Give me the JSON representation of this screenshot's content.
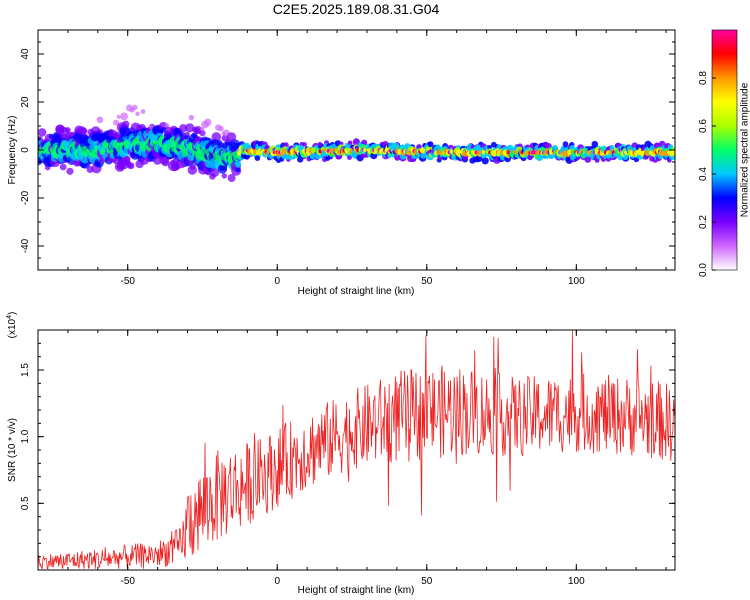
{
  "title": "C2E5.2025.189.08.31.G04",
  "chart_data": [
    {
      "type": "heatmap",
      "xlabel": "Height of straight line (km)",
      "ylabel": "Frequency (Hz)",
      "xlim": [
        -80,
        133
      ],
      "ylim": [
        -50,
        50
      ],
      "xticks": [
        -50,
        0,
        50,
        100
      ],
      "yticks": [
        -40,
        -20,
        0,
        20,
        40
      ],
      "colorbar": {
        "label": "Normalized spectral amplitude",
        "range": [
          0,
          1
        ],
        "ticks": [
          "0.0",
          "0.2",
          "0.4",
          "0.6",
          "0.8"
        ],
        "colors": [
          "#ffffff",
          "#d066ff",
          "#7a00ff",
          "#0000ff",
          "#00c8ff",
          "#00ff66",
          "#aaff00",
          "#ffff00",
          "#ff9900",
          "#ff0000",
          "#ff00a0"
        ]
      },
      "ridge": [
        {
          "x": -80,
          "freq": 0
        },
        {
          "x": -60,
          "freq": 0
        },
        {
          "x": -50,
          "freq": 2
        },
        {
          "x": -40,
          "freq": 3
        },
        {
          "x": -30,
          "freq": 1
        },
        {
          "x": -20,
          "freq": -3
        },
        {
          "x": -13,
          "freq": -3
        },
        {
          "x": -12,
          "freq": 0
        },
        {
          "x": 0,
          "freq": -1
        },
        {
          "x": 30,
          "freq": 0
        },
        {
          "x": 60,
          "freq": -1
        },
        {
          "x": 100,
          "freq": -1
        },
        {
          "x": 133,
          "freq": -1
        }
      ]
    },
    {
      "type": "line",
      "xlabel": "Height of straight line (km)",
      "ylabel": "SNR (10 * v/v)",
      "ymult": "(x10",
      "ymult_exp": "4",
      "ymult_close": ")",
      "xlim": [
        -80,
        133
      ],
      "ylim": [
        0,
        1.8
      ],
      "xticks": [
        -50,
        0,
        50,
        100
      ],
      "yticks": [
        "0.5",
        "1.0",
        "1.5"
      ],
      "series_color": "#ee2222",
      "envelope": [
        {
          "x": -80,
          "mean": 0.06,
          "amp": 0.06
        },
        {
          "x": -60,
          "mean": 0.08,
          "amp": 0.08
        },
        {
          "x": -40,
          "mean": 0.12,
          "amp": 0.1
        },
        {
          "x": -32,
          "mean": 0.18,
          "amp": 0.15
        },
        {
          "x": -30,
          "mean": 0.35,
          "amp": 0.3
        },
        {
          "x": -20,
          "mean": 0.55,
          "amp": 0.35
        },
        {
          "x": -5,
          "mean": 0.7,
          "amp": 0.3
        },
        {
          "x": 10,
          "mean": 0.9,
          "amp": 0.3
        },
        {
          "x": 25,
          "mean": 1.05,
          "amp": 0.3
        },
        {
          "x": 40,
          "mean": 1.15,
          "amp": 0.35
        },
        {
          "x": 60,
          "mean": 1.2,
          "amp": 0.35
        },
        {
          "x": 80,
          "mean": 1.15,
          "amp": 0.3
        },
        {
          "x": 100,
          "mean": 1.18,
          "amp": 0.3
        },
        {
          "x": 120,
          "mean": 1.15,
          "amp": 0.3
        },
        {
          "x": 133,
          "mean": 1.1,
          "amp": 0.3
        }
      ]
    }
  ]
}
